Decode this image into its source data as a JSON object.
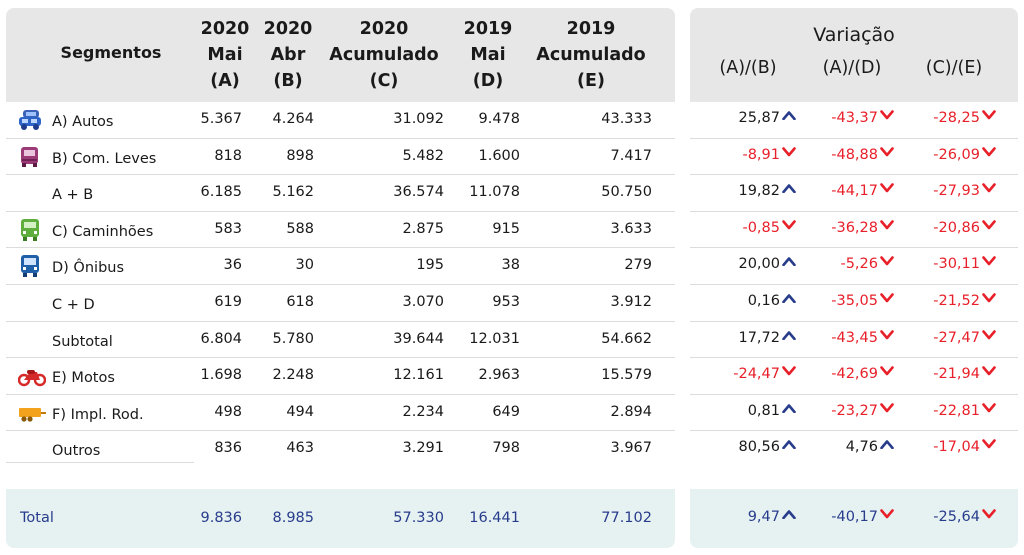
{
  "header": {
    "segmentos": "Segmentos",
    "columns": [
      {
        "l1": "2020",
        "l2": "Mai",
        "l3": "(A)"
      },
      {
        "l1": "2020",
        "l2": "Abr",
        "l3": "(B)"
      },
      {
        "l1": "2020",
        "l2": "Acumulado",
        "l3": "(C)"
      },
      {
        "l1": "2019",
        "l2": "Mai",
        "l3": "(D)"
      },
      {
        "l1": "2019",
        "l2": "Acumulado",
        "l3": "(E)"
      }
    ],
    "variacao": "Variação",
    "var_columns": [
      "(A)/(B)",
      "(A)/(D)",
      "(C)/(E)"
    ]
  },
  "rows": [
    {
      "label": "A) Autos",
      "icon": "car-icon",
      "values": [
        "5.367",
        "4.264",
        "31.092",
        "9.478",
        "43.333"
      ],
      "var": [
        {
          "v": "25,87",
          "dir": "up"
        },
        {
          "v": "-43,37",
          "dir": "down"
        },
        {
          "v": "-28,25",
          "dir": "down"
        }
      ]
    },
    {
      "label": "B) Com. Leves",
      "icon": "van-icon",
      "values": [
        "818",
        "898",
        "5.482",
        "1.600",
        "7.417"
      ],
      "var": [
        {
          "v": "-8,91",
          "dir": "down"
        },
        {
          "v": "-48,88",
          "dir": "down"
        },
        {
          "v": "-26,09",
          "dir": "down"
        }
      ]
    },
    {
      "label": "A + B",
      "icon": "",
      "values": [
        "6.185",
        "5.162",
        "36.574",
        "11.078",
        "50.750"
      ],
      "var": [
        {
          "v": "19,82",
          "dir": "up"
        },
        {
          "v": "-44,17",
          "dir": "down"
        },
        {
          "v": "-27,93",
          "dir": "down"
        }
      ]
    },
    {
      "label": "C) Caminhões",
      "icon": "truck-icon",
      "values": [
        "583",
        "588",
        "2.875",
        "915",
        "3.633"
      ],
      "var": [
        {
          "v": "-0,85",
          "dir": "down"
        },
        {
          "v": "-36,28",
          "dir": "down"
        },
        {
          "v": "-20,86",
          "dir": "down"
        }
      ]
    },
    {
      "label": "D) Ônibus",
      "icon": "bus-icon",
      "values": [
        "36",
        "30",
        "195",
        "38",
        "279"
      ],
      "var": [
        {
          "v": "20,00",
          "dir": "up"
        },
        {
          "v": "-5,26",
          "dir": "down"
        },
        {
          "v": "-30,11",
          "dir": "down"
        }
      ]
    },
    {
      "label": "C + D",
      "icon": "",
      "values": [
        "619",
        "618",
        "3.070",
        "953",
        "3.912"
      ],
      "var": [
        {
          "v": "0,16",
          "dir": "up"
        },
        {
          "v": "-35,05",
          "dir": "down"
        },
        {
          "v": "-21,52",
          "dir": "down"
        }
      ]
    },
    {
      "label": "Subtotal",
      "icon": "",
      "values": [
        "6.804",
        "5.780",
        "39.644",
        "12.031",
        "54.662"
      ],
      "var": [
        {
          "v": "17,72",
          "dir": "up"
        },
        {
          "v": "-43,45",
          "dir": "down"
        },
        {
          "v": "-27,47",
          "dir": "down"
        }
      ]
    },
    {
      "label": "E) Motos",
      "icon": "motorcycle-icon",
      "values": [
        "1.698",
        "2.248",
        "12.161",
        "2.963",
        "15.579"
      ],
      "var": [
        {
          "v": "-24,47",
          "dir": "down"
        },
        {
          "v": "-42,69",
          "dir": "down"
        },
        {
          "v": "-21,94",
          "dir": "down"
        }
      ]
    },
    {
      "label": "F) Impl. Rod.",
      "icon": "trailer-icon",
      "values": [
        "498",
        "494",
        "2.234",
        "649",
        "2.894"
      ],
      "var": [
        {
          "v": "0,81",
          "dir": "up"
        },
        {
          "v": "-23,27",
          "dir": "down"
        },
        {
          "v": "-22,81",
          "dir": "down"
        }
      ]
    },
    {
      "label": "Outros",
      "icon": "",
      "values": [
        "836",
        "463",
        "3.291",
        "798",
        "3.967"
      ],
      "var": [
        {
          "v": "80,56",
          "dir": "up"
        },
        {
          "v": "4,76",
          "dir": "up"
        },
        {
          "v": "-17,04",
          "dir": "down"
        }
      ]
    }
  ],
  "total": {
    "label": "Total",
    "values": [
      "9.836",
      "8.985",
      "57.330",
      "16.441",
      "77.102"
    ],
    "var": [
      {
        "v": "9,47",
        "dir": "up"
      },
      {
        "v": "-40,17",
        "dir": "down"
      },
      {
        "v": "-25,64",
        "dir": "down"
      }
    ]
  },
  "colors": {
    "positive_arrow": "#283c8c",
    "negative": "#e8202a",
    "total_text": "#283c8c",
    "header_bg": "#e7e7e7",
    "total_bg": "#e6f2f2"
  }
}
